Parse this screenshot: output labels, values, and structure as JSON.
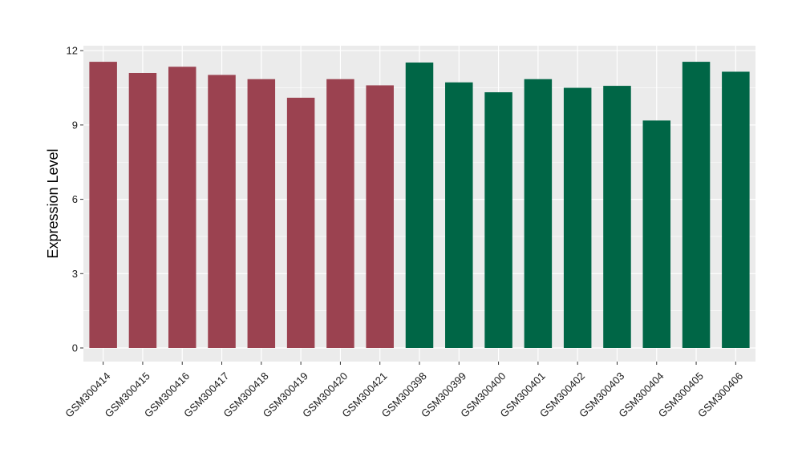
{
  "chart_data": {
    "type": "bar",
    "ylabel": "Expression Level",
    "xlabel": "",
    "title": "",
    "ylim": [
      -0.55,
      12.2
    ],
    "yticks": [
      0,
      3,
      6,
      9,
      12
    ],
    "grid": true,
    "legend": "none",
    "colors": {
      "group_a": "#9B4250",
      "group_b": "#006646",
      "panel_bg": "#EBEBEB",
      "grid": "#FFFFFF"
    },
    "categories": [
      "GSM300414",
      "GSM300415",
      "GSM300416",
      "GSM300417",
      "GSM300418",
      "GSM300419",
      "GSM300420",
      "GSM300421",
      "GSM300398",
      "GSM300399",
      "GSM300400",
      "GSM300401",
      "GSM300402",
      "GSM300403",
      "GSM300404",
      "GSM300405",
      "GSM300406"
    ],
    "values": [
      11.55,
      11.1,
      11.35,
      11.02,
      10.85,
      10.1,
      10.85,
      10.6,
      11.52,
      10.72,
      10.32,
      10.85,
      10.5,
      10.58,
      9.18,
      11.55,
      11.15
    ],
    "groups": [
      "a",
      "a",
      "a",
      "a",
      "a",
      "a",
      "a",
      "a",
      "b",
      "b",
      "b",
      "b",
      "b",
      "b",
      "b",
      "b",
      "b"
    ]
  }
}
